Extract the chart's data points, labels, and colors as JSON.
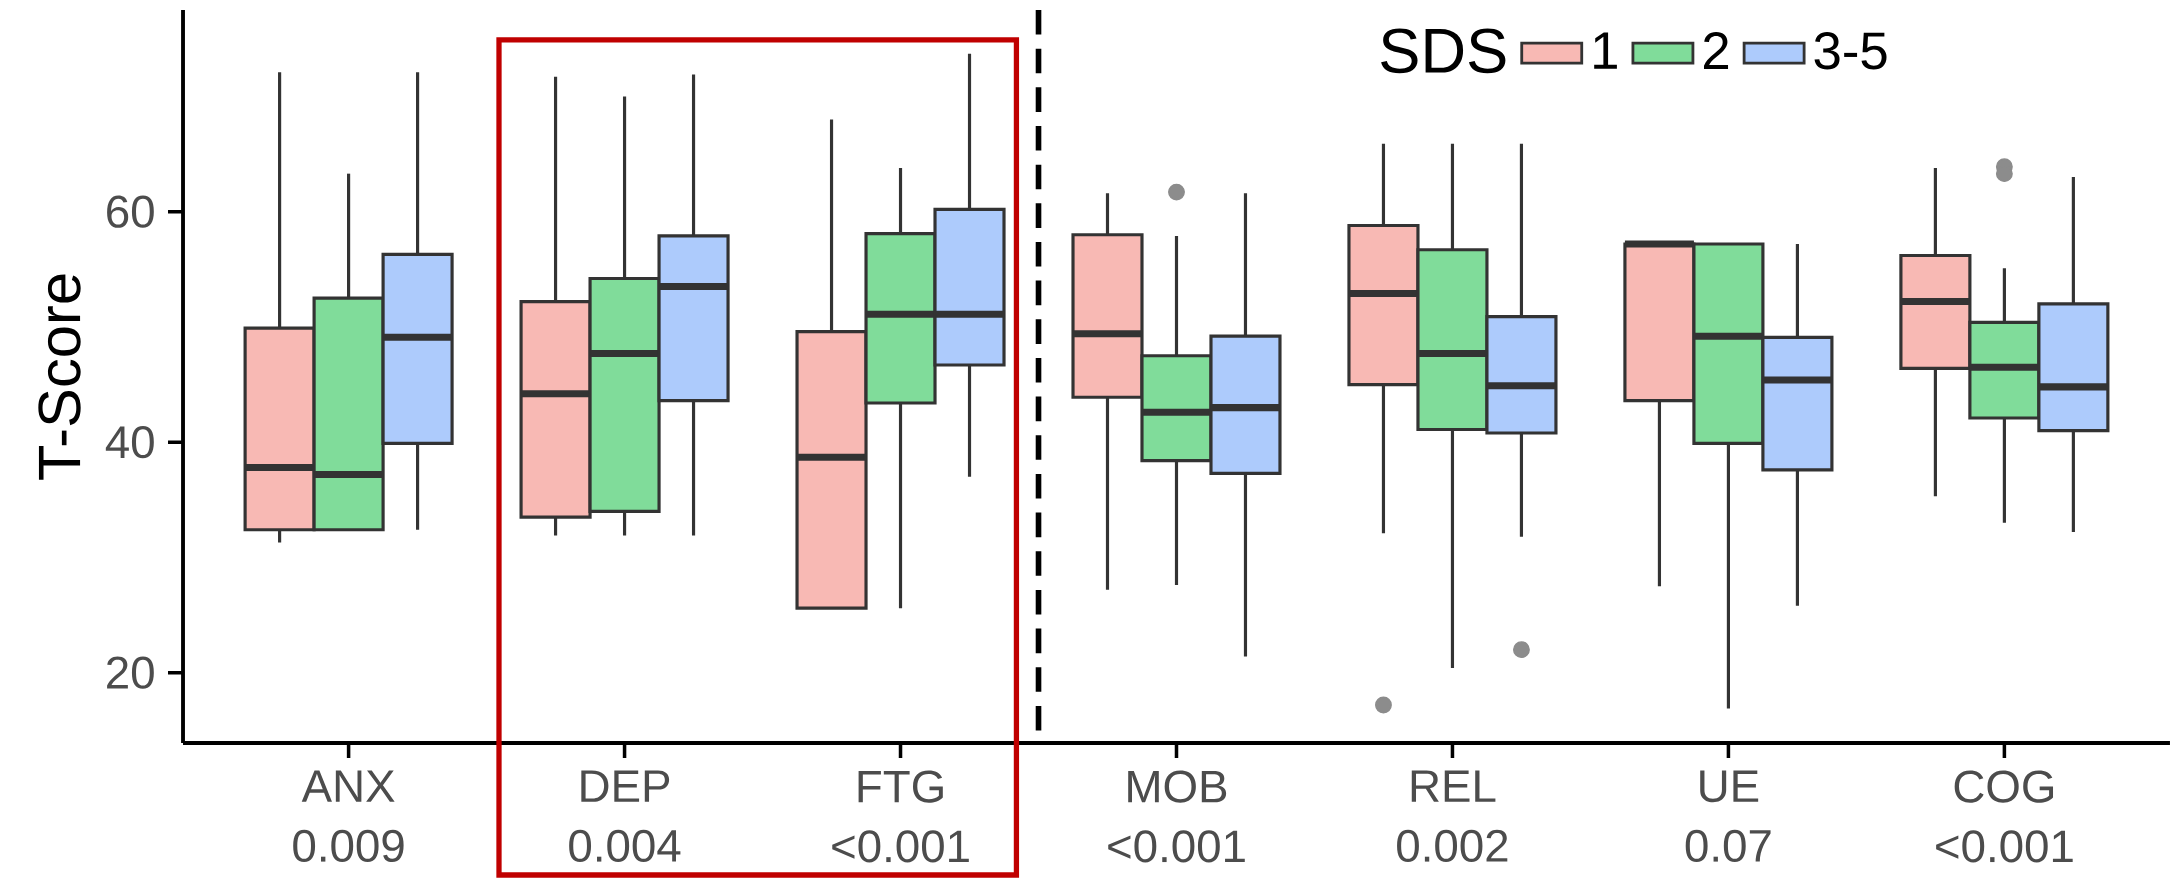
{
  "chart_data": {
    "type": "box",
    "ylabel": "T-Score",
    "legend_title": "SDS",
    "legend": "top right",
    "categories": [
      "ANX 0.009",
      "DEP 0.004",
      "FTG <0.001",
      "MOB <0.001",
      "REL 0.002",
      "UE 0.07",
      "COG <0.001"
    ],
    "ylim": [
      13.9,
      77.5
    ],
    "yticks": [
      20,
      40,
      60
    ],
    "grid": false,
    "series": [
      {
        "name": "1",
        "color": "#f8b9b4",
        "boxes": [
          {
            "low": 31.3,
            "q1": 32.4,
            "median": 37.8,
            "q3": 49.9,
            "high": 72.1
          },
          {
            "low": 31.9,
            "q1": 33.5,
            "median": 44.2,
            "q3": 52.2,
            "high": 71.7
          },
          {
            "low": 25.6,
            "q1": 25.6,
            "median": 38.7,
            "q3": 49.6,
            "high": 68.0
          },
          {
            "low": 27.2,
            "q1": 43.9,
            "median": 49.4,
            "q3": 58.0,
            "high": 61.6
          },
          {
            "low": 32.1,
            "q1": 45.0,
            "median": 52.9,
            "q3": 58.8,
            "high": 65.9,
            "outliers": [
              17.2
            ]
          },
          {
            "low": 27.5,
            "q1": 43.6,
            "median": 57.2,
            "q3": 57.2,
            "high": 57.2
          },
          {
            "low": 35.3,
            "q1": 46.4,
            "median": 52.2,
            "q3": 56.2,
            "high": 63.8
          }
        ]
      },
      {
        "name": "2",
        "color": "#80dc9a",
        "boxes": [
          {
            "low": 32.4,
            "q1": 32.4,
            "median": 37.2,
            "q3": 52.5,
            "high": 63.3
          },
          {
            "low": 31.9,
            "q1": 34.0,
            "median": 47.7,
            "q3": 54.2,
            "high": 70.0
          },
          {
            "low": 25.6,
            "q1": 43.4,
            "median": 51.1,
            "q3": 58.1,
            "high": 63.8
          },
          {
            "low": 27.6,
            "q1": 38.4,
            "median": 42.6,
            "q3": 47.5,
            "high": 57.9,
            "outliers": [
              61.7
            ]
          },
          {
            "low": 20.4,
            "q1": 41.1,
            "median": 47.7,
            "q3": 56.7,
            "high": 65.9
          },
          {
            "low": 16.9,
            "q1": 39.9,
            "median": 49.2,
            "q3": 57.2,
            "high": 57.2
          },
          {
            "low": 33.0,
            "q1": 42.1,
            "median": 46.5,
            "q3": 50.4,
            "high": 55.1,
            "outliers": [
              63.9,
              63.3
            ]
          }
        ]
      },
      {
        "name": "3-5",
        "color": "#adcbfc",
        "boxes": [
          {
            "low": 32.4,
            "q1": 39.9,
            "median": 49.1,
            "q3": 56.3,
            "high": 72.1
          },
          {
            "low": 31.9,
            "q1": 43.6,
            "median": 53.5,
            "q3": 57.9,
            "high": 71.9
          },
          {
            "low": 37.0,
            "q1": 46.7,
            "median": 51.1,
            "q3": 60.2,
            "high": 73.7
          },
          {
            "low": 21.4,
            "q1": 37.3,
            "median": 43.0,
            "q3": 49.2,
            "high": 61.6
          },
          {
            "low": 31.8,
            "q1": 40.8,
            "median": 44.9,
            "q3": 50.9,
            "high": 65.9,
            "outliers": [
              22.0
            ]
          },
          {
            "low": 25.8,
            "q1": 37.6,
            "median": 45.4,
            "q3": 49.1,
            "high": 57.2
          },
          {
            "low": 32.2,
            "q1": 41.0,
            "median": 44.8,
            "q3": 52.0,
            "high": 63.0
          }
        ]
      }
    ]
  }
}
